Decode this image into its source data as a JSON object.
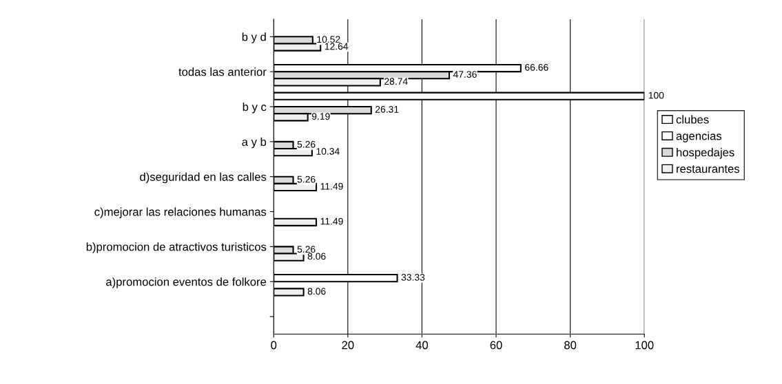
{
  "chart_data": {
    "type": "bar",
    "orientation": "horizontal",
    "categories": [
      "b y d",
      "todas las anterior",
      "b y c",
      "a y b",
      "d)seguridad en las calles",
      "c)mejorar las relaciones humanas",
      "b)promocion de atractivos turisticos",
      "a)promocion eventos de folkore",
      null
    ],
    "series": [
      {
        "name": "clubes",
        "color": "#ffffff",
        "values": [
          null,
          null,
          100,
          null,
          null,
          null,
          null,
          null,
          null
        ]
      },
      {
        "name": "agencias",
        "color": "#ffffff",
        "values": [
          null,
          66.66,
          null,
          null,
          null,
          null,
          null,
          33.33,
          null
        ]
      },
      {
        "name": "hospedajes",
        "color": "#d9d9d9",
        "values": [
          10.52,
          47.36,
          26.31,
          5.26,
          5.26,
          null,
          5.26,
          null,
          null
        ]
      },
      {
        "name": "restaurantes",
        "color": "#efefef",
        "values": [
          12.64,
          28.74,
          9.19,
          10.34,
          11.49,
          11.49,
          8.06,
          8.06,
          null
        ]
      }
    ],
    "xlim": [
      0,
      100
    ],
    "xticks": [
      0,
      20,
      40,
      60,
      80,
      100
    ],
    "grid": "x",
    "legend": "right",
    "data_labels": true
  }
}
